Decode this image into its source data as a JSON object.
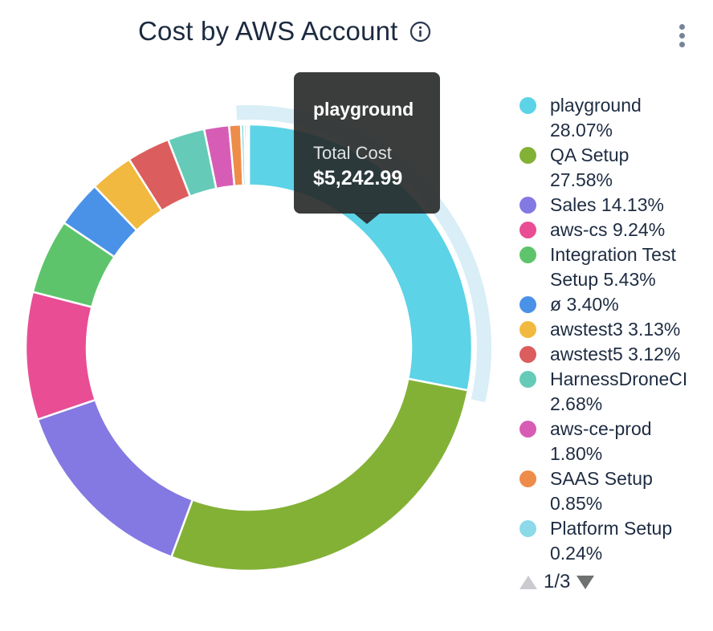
{
  "header": {
    "title": "Cost by AWS Account",
    "info_icon": "info-circle-icon",
    "menu_icon": "kebab-vertical-icon"
  },
  "tooltip": {
    "title": "playground",
    "metric_label": "Total Cost",
    "value": "$5,242.99"
  },
  "chart_data": {
    "type": "pie",
    "donut": true,
    "title": "Cost by AWS Account",
    "unit": "percent",
    "hovered_slice": "playground",
    "hovered_total_cost": "$5,242.99",
    "highlight_color": "#d9eef6",
    "legend_position": "right",
    "series": [
      {
        "name": "playground",
        "value": 28.07,
        "color": "#5cd3e6"
      },
      {
        "name": "QA Setup",
        "value": 27.58,
        "color": "#83b136"
      },
      {
        "name": "Sales",
        "value": 14.13,
        "color": "#8478e2"
      },
      {
        "name": "aws-cs",
        "value": 9.24,
        "color": "#e94d94"
      },
      {
        "name": "Integration Test Setup",
        "value": 5.43,
        "color": "#5ec46b"
      },
      {
        "name": "ø",
        "value": 3.4,
        "color": "#4a92e8"
      },
      {
        "name": "awstest3",
        "value": 3.13,
        "color": "#f1b93f"
      },
      {
        "name": "awstest5",
        "value": 3.12,
        "color": "#dc5d5d"
      },
      {
        "name": "HarnessDroneCI",
        "value": 2.68,
        "color": "#65cbb8"
      },
      {
        "name": "aws-ce-prod",
        "value": 1.8,
        "color": "#d75cb6"
      },
      {
        "name": "SAAS Setup",
        "value": 0.85,
        "color": "#ee8c4a"
      },
      {
        "name": "Platform Setup",
        "value": 0.24,
        "color": "#8bd9e9"
      },
      {
        "name": "",
        "value": 0.17,
        "color": "#abc55e"
      },
      {
        "name": "",
        "value": 0.16,
        "color": "#a6dcea"
      }
    ]
  },
  "legend": {
    "items": [
      {
        "color": "#5cd3e6",
        "lines": [
          "playground",
          "28.07%"
        ]
      },
      {
        "color": "#83b136",
        "lines": [
          "QA Setup",
          "27.58%"
        ]
      },
      {
        "color": "#8478e2",
        "lines": [
          "Sales 14.13%"
        ]
      },
      {
        "color": "#e94d94",
        "lines": [
          "aws-cs 9.24%"
        ]
      },
      {
        "color": "#5ec46b",
        "lines": [
          "Integration Test",
          "Setup 5.43%"
        ]
      },
      {
        "color": "#4a92e8",
        "lines": [
          "ø 3.40%"
        ]
      },
      {
        "color": "#f1b93f",
        "lines": [
          "awstest3 3.13%"
        ]
      },
      {
        "color": "#dc5d5d",
        "lines": [
          "awstest5 3.12%"
        ]
      },
      {
        "color": "#65cbb8",
        "lines": [
          "HarnessDroneCI",
          "2.68%"
        ]
      },
      {
        "color": "#d75cb6",
        "lines": [
          "aws-ce-prod",
          "1.80%"
        ]
      },
      {
        "color": "#ee8c4a",
        "lines": [
          "SAAS Setup",
          "0.85%"
        ]
      },
      {
        "color": "#8bd9e9",
        "lines": [
          "Platform Setup",
          "0.24%"
        ]
      },
      {
        "color": "#b2ca64",
        "lines": []
      }
    ],
    "pagination": {
      "label": "1/3"
    }
  }
}
